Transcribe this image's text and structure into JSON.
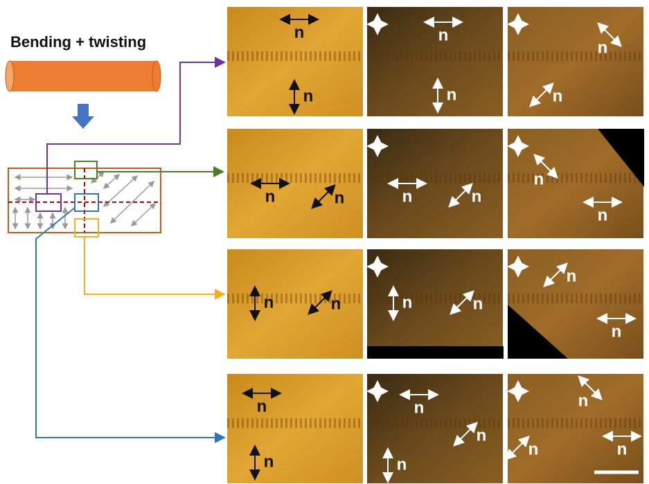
{
  "title": "Bending + twisting",
  "panels": [
    {
      "labels": [
        "n",
        "n"
      ]
    },
    {
      "labels": [
        "n",
        "n"
      ]
    },
    {
      "labels": [
        "n",
        "n"
      ]
    },
    {
      "labels": [
        "n",
        "n"
      ]
    },
    {
      "labels": [
        "n",
        "n"
      ]
    },
    {
      "labels": [
        "n",
        "n"
      ]
    },
    {
      "labels": [
        "n",
        "n"
      ]
    },
    {
      "labels": [
        "n",
        "n"
      ]
    },
    {
      "labels": [
        "n",
        "n"
      ]
    },
    {
      "labels": [
        "n",
        "n"
      ]
    },
    {
      "labels": [
        "n",
        "n",
        "n"
      ]
    },
    {
      "labels": [
        "n",
        "n",
        "n"
      ]
    }
  ]
}
